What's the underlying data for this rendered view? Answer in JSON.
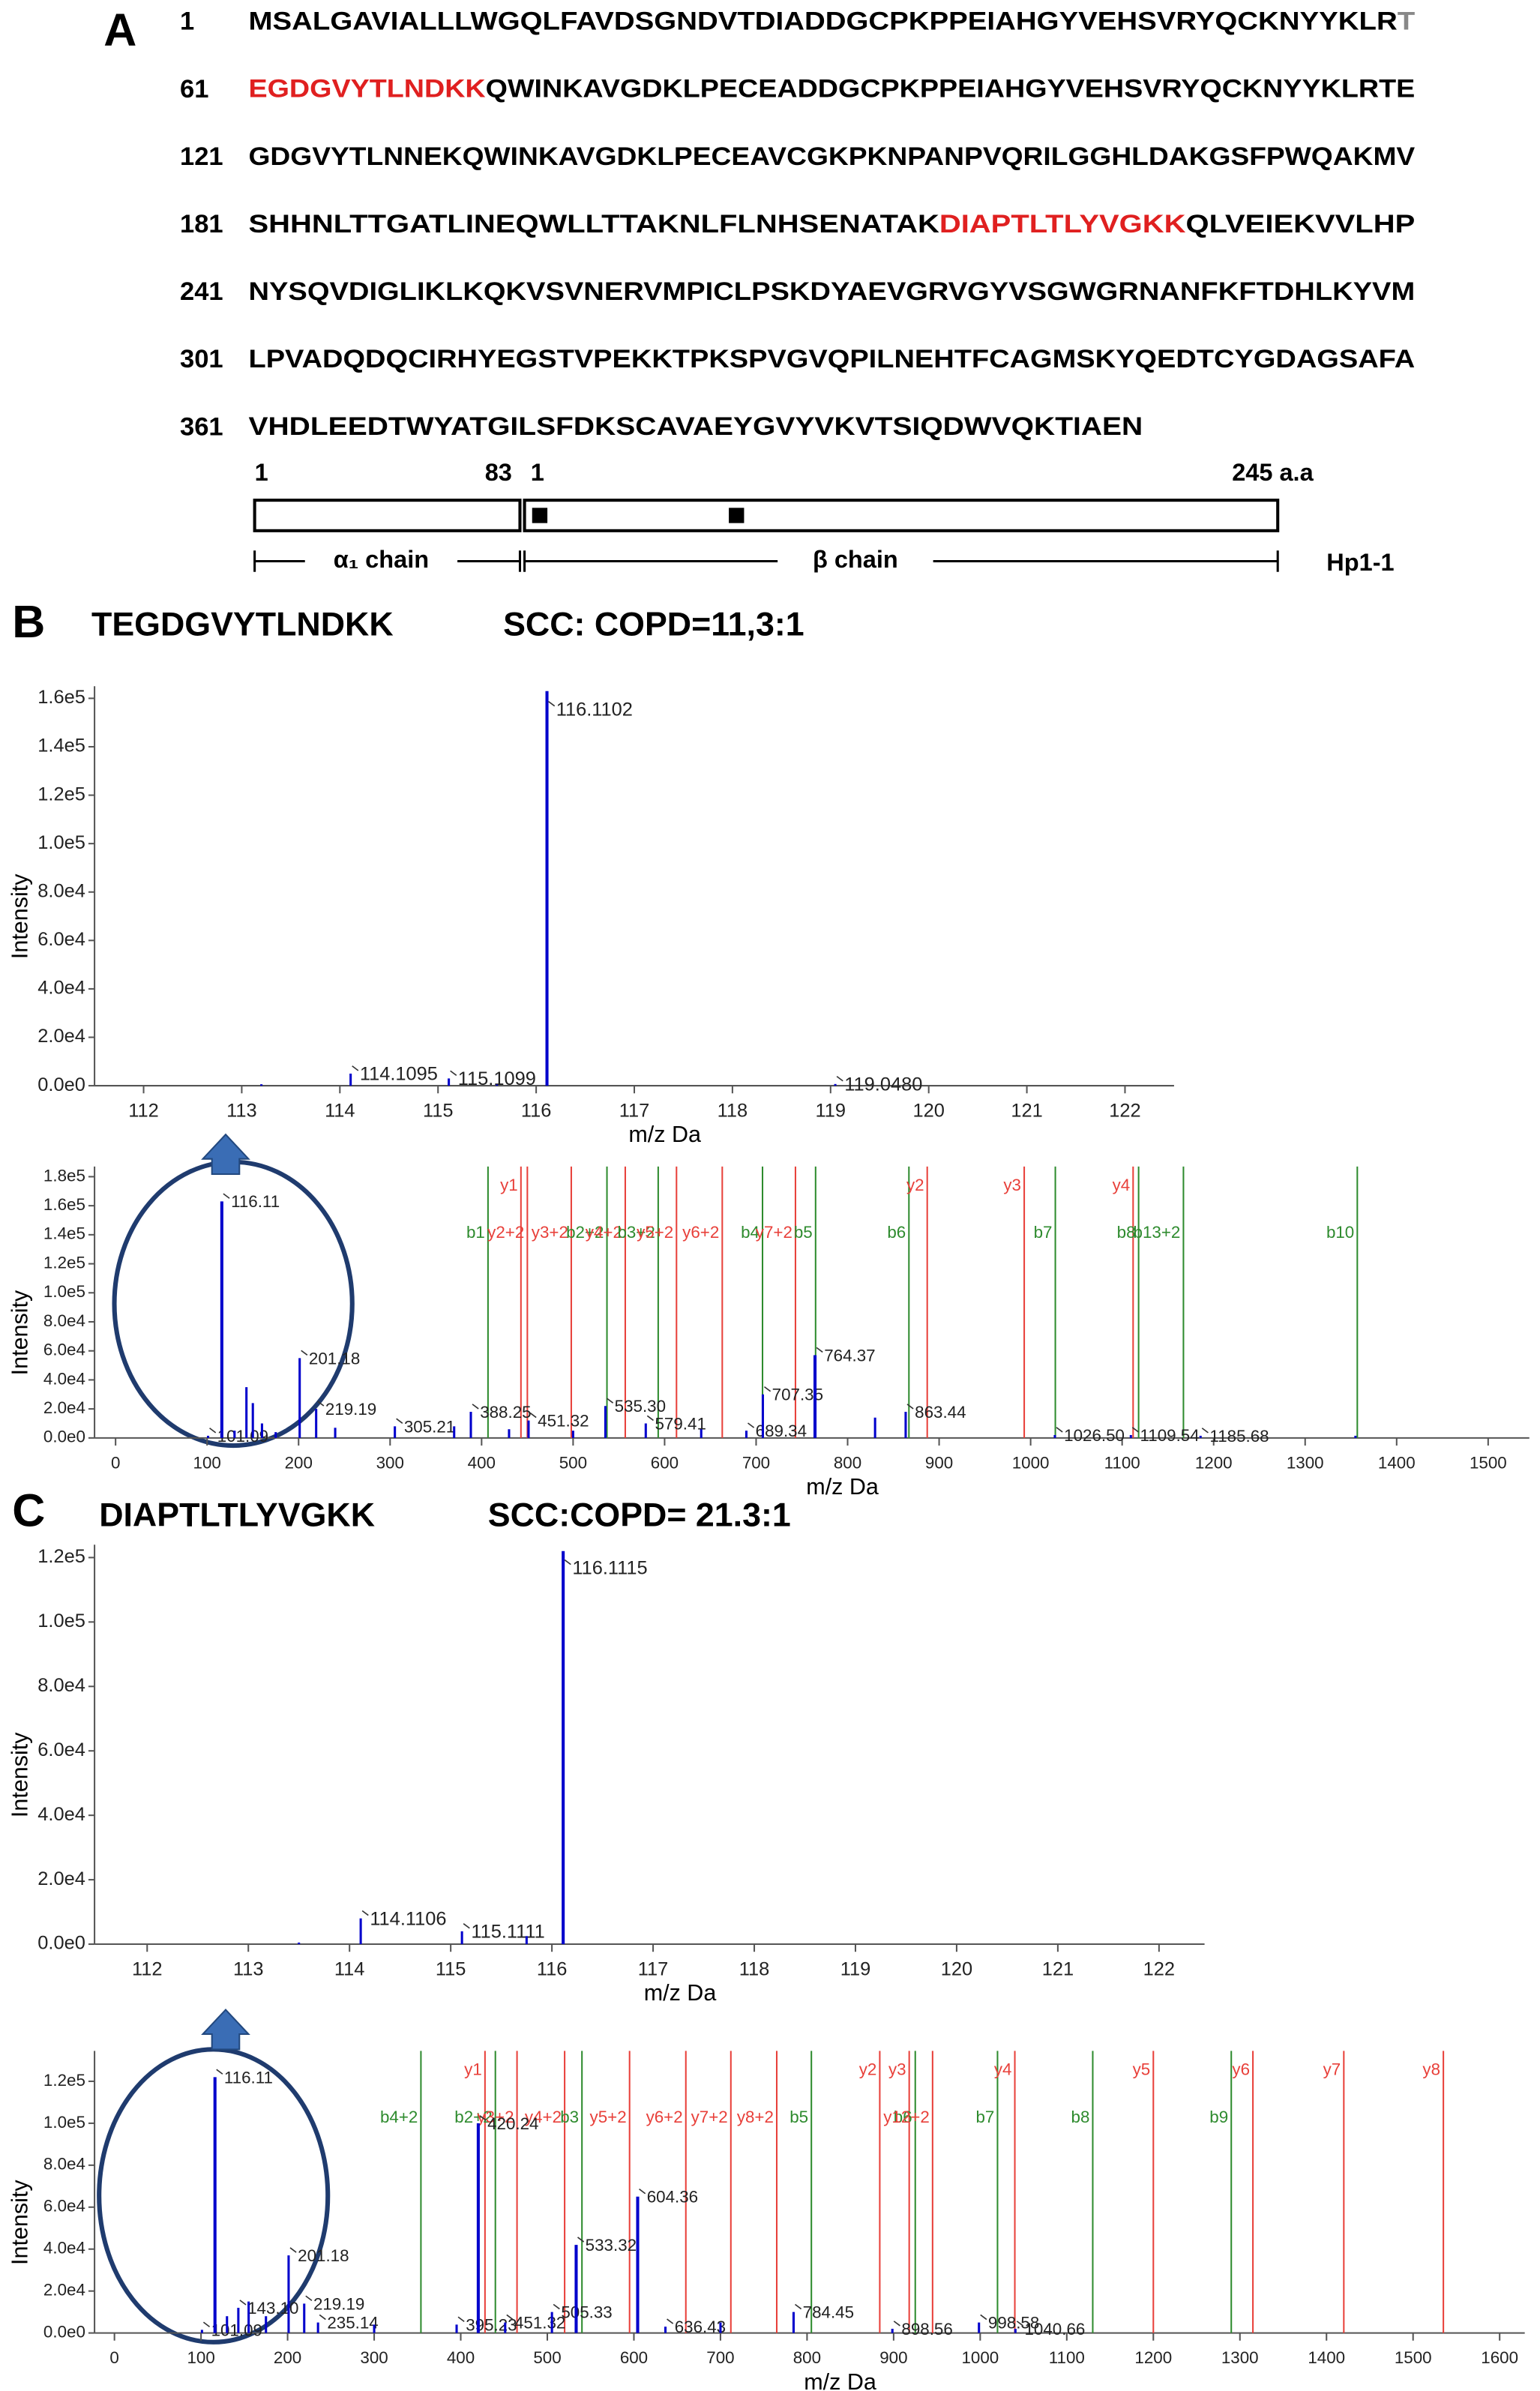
{
  "panel_a": {
    "label": "A",
    "rows": [
      {
        "number": "1",
        "segments": [
          {
            "text": "MSALGAVIALLLWGQLFAVDSGNDVTDIADDGCPKPPEIAHGYVEHSVRYQCKNYYKLR",
            "color": "#000000"
          },
          {
            "text": "T",
            "color": "#888888"
          }
        ]
      },
      {
        "number": "61",
        "segments": [
          {
            "text": "EGDGVYTLNDKK",
            "color": "#e02020"
          },
          {
            "text": "QWINKAVGDKLPECEADDGCPKPPEIAHGYVEHSVRYQCKNYYKLRTE",
            "color": "#000000"
          }
        ]
      },
      {
        "number": "121",
        "segments": [
          {
            "text": "GDGVYTLNNEKQWINKAVGDKLPECEAVCGKPKNPANPVQRILGGHLDAKGSFPWQAKMV",
            "color": "#000000"
          }
        ]
      },
      {
        "number": "181",
        "segments": [
          {
            "text": "SHHNLTTGATLINEQWLLTTAKNLFLNHSENATAK",
            "color": "#000000"
          },
          {
            "text": "DIAPTLTLYVGKK",
            "color": "#e02020"
          },
          {
            "text": "QLVEIEKVVLHP",
            "color": "#000000"
          }
        ]
      },
      {
        "number": "241",
        "segments": [
          {
            "text": "NYSQVDIGLIKLKQKVSVNERVMPICLPSKDYAEVGRVGYVSGWGRNANFKFTDHLKYVM",
            "color": "#000000"
          }
        ]
      },
      {
        "number": "301",
        "segments": [
          {
            "text": "LPVADQDQCIRHYEGSTVPEKKTPKSPVGVQPILNEHTFCAGMSKYQEDTCYGDAGSAFA",
            "color": "#000000"
          }
        ]
      },
      {
        "number": "361",
        "segments": [
          {
            "text": "VHDLEEDTWYATGILSFDKSCAVAEYGVYVKVTSIQDWVQKTIAEN",
            "color": "#000000"
          }
        ]
      }
    ],
    "domain": {
      "alpha_start": "1",
      "alpha_end": "83",
      "beta_start": "1",
      "beta_end": "245 a.a",
      "alpha_label": "α₁ chain",
      "beta_label": "β chain",
      "isoform": "Hp1-1"
    }
  },
  "panel_b": {
    "label": "B",
    "peptide": "TEGDGVYTLNDKK",
    "ratio": "SCC: COPD=11,3:1"
  },
  "panel_c": {
    "label": "C",
    "peptide": "DIAPTLTLYVGKK",
    "ratio": "SCC:COPD= 21.3:1"
  },
  "chart_data": [
    {
      "type": "spectrum",
      "xlabel": "m/z Da",
      "ylabel": "Intensity",
      "color": "#0000cc",
      "xlim": [
        111.5,
        122.5
      ],
      "xticks": [
        112,
        113,
        114,
        115,
        116,
        117,
        118,
        119,
        120,
        121,
        122
      ],
      "ylim": [
        0,
        165000
      ],
      "yticks": [
        {
          "value": 0,
          "label": "0.0e0"
        },
        {
          "value": 20000,
          "label": "2.0e4"
        },
        {
          "value": 40000,
          "label": "4.0e4"
        },
        {
          "value": 60000,
          "label": "6.0e4"
        },
        {
          "value": 80000,
          "label": "8.0e4"
        },
        {
          "value": 100000,
          "label": "1.0e5"
        },
        {
          "value": 120000,
          "label": "1.2e5"
        },
        {
          "value": 140000,
          "label": "1.4e5"
        },
        {
          "value": 160000,
          "label": "1.6e5"
        }
      ],
      "x": [
        113.2,
        114.1095,
        115.1099,
        115.6,
        116.1102,
        119.048
      ],
      "values": [
        600,
        5000,
        3000,
        500,
        163000,
        700
      ],
      "peak_labels": [
        null,
        "114.1095",
        "115.1099",
        null,
        "116.1102",
        "119.0480"
      ],
      "ion_lines": []
    },
    {
      "type": "spectrum",
      "xlabel": "m/z Da",
      "ylabel": "Intensity",
      "color": "#0000cc",
      "xlim": [
        -23,
        1545
      ],
      "xticks": [
        0,
        100,
        200,
        300,
        400,
        500,
        600,
        700,
        800,
        900,
        1000,
        1100,
        1200,
        1300,
        1400,
        1500
      ],
      "ylim": [
        0,
        187000
      ],
      "yticks": [
        {
          "value": 0,
          "label": "0.0e0"
        },
        {
          "value": 20000,
          "label": "2.0e4"
        },
        {
          "value": 40000,
          "label": "4.0e4"
        },
        {
          "value": 60000,
          "label": "6.0e4"
        },
        {
          "value": 80000,
          "label": "8.0e4"
        },
        {
          "value": 100000,
          "label": "1.0e5"
        },
        {
          "value": 120000,
          "label": "1.2e5"
        },
        {
          "value": 140000,
          "label": "1.4e5"
        },
        {
          "value": 160000,
          "label": "1.6e5"
        },
        {
          "value": 180000,
          "label": "1.8e5"
        }
      ],
      "x": [
        101.09,
        116.11,
        130,
        143,
        150,
        160,
        175,
        201.18,
        219.19,
        240,
        305.21,
        370,
        388.25,
        430,
        451.32,
        500,
        535.3,
        579.41,
        640,
        689.34,
        707.35,
        764.37,
        830,
        863.44,
        1026.5,
        1109.54,
        1185.68,
        1355
      ],
      "values": [
        1500,
        163000,
        5000,
        35000,
        24000,
        10000,
        4000,
        55000,
        20000,
        7000,
        8000,
        8000,
        18000,
        6000,
        12000,
        5000,
        22000,
        10000,
        6000,
        5000,
        30000,
        57000,
        14000,
        18000,
        2000,
        2000,
        1500,
        1500
      ],
      "peak_labels": [
        "101.09",
        "116.11",
        null,
        null,
        null,
        null,
        null,
        "201.18",
        "219.19",
        null,
        "305.21",
        null,
        "388.25",
        null,
        "451.32",
        null,
        "535.30",
        "579.41",
        null,
        "689.34",
        "707.35",
        "764.37",
        null,
        "863.44",
        "1026.50",
        "1109.54",
        "1185.68",
        null
      ],
      "ion_lines": [
        {
          "label": "b1",
          "x": 407,
          "color": "#2e8b2e"
        },
        {
          "label": "y1",
          "x": 443,
          "color": "#e8403a"
        },
        {
          "label": "y2+2",
          "x": 450,
          "color": "#e8403a"
        },
        {
          "label": "y3+2",
          "x": 498,
          "color": "#e8403a"
        },
        {
          "label": "b2+2",
          "x": 537,
          "color": "#2e8b2e"
        },
        {
          "label": "y4+2",
          "x": 557,
          "color": "#e8403a"
        },
        {
          "label": "b3+2",
          "x": 593,
          "color": "#2e8b2e"
        },
        {
          "label": "y5+2",
          "x": 613,
          "color": "#e8403a"
        },
        {
          "label": "y6+2",
          "x": 663,
          "color": "#e8403a"
        },
        {
          "label": "b4",
          "x": 707,
          "color": "#2e8b2e"
        },
        {
          "label": "y7+2",
          "x": 743,
          "color": "#e8403a"
        },
        {
          "label": "b5",
          "x": 765,
          "color": "#2e8b2e"
        },
        {
          "label": "b6",
          "x": 867,
          "color": "#2e8b2e"
        },
        {
          "label": "y2",
          "x": 887,
          "color": "#e8403a"
        },
        {
          "label": "y3",
          "x": 993,
          "color": "#e8403a"
        },
        {
          "label": "b7",
          "x": 1027,
          "color": "#2e8b2e"
        },
        {
          "label": "y4",
          "x": 1112,
          "color": "#e8403a"
        },
        {
          "label": "b8",
          "x": 1118,
          "color": "#2e8b2e"
        },
        {
          "label": "b13+2",
          "x": 1167,
          "color": "#2e8b2e"
        },
        {
          "label": "b10",
          "x": 1357,
          "color": "#2e8b2e"
        }
      ]
    },
    {
      "type": "spectrum",
      "xlabel": "m/z Da",
      "ylabel": "Intensity",
      "color": "#0000cc",
      "xlim": [
        111.48,
        122.45
      ],
      "xticks": [
        112,
        113,
        114,
        115,
        116,
        117,
        118,
        119,
        120,
        121,
        122
      ],
      "ylim": [
        0,
        124000
      ],
      "yticks": [
        {
          "value": 0,
          "label": "0.0e0"
        },
        {
          "value": 20000,
          "label": "2.0e4"
        },
        {
          "value": 40000,
          "label": "4.0e4"
        },
        {
          "value": 60000,
          "label": "6.0e4"
        },
        {
          "value": 80000,
          "label": "8.0e4"
        },
        {
          "value": 100000,
          "label": "1.0e5"
        },
        {
          "value": 120000,
          "label": "1.2e5"
        }
      ],
      "x": [
        113.5,
        114.1106,
        115.1111,
        115.75,
        116.1115
      ],
      "values": [
        500,
        8000,
        4000,
        2500,
        122000
      ],
      "peak_labels": [
        null,
        "114.1106",
        "115.1111",
        null,
        "116.1115"
      ],
      "ion_lines": []
    },
    {
      "type": "spectrum",
      "xlabel": "m/z Da",
      "ylabel": "Intensity",
      "color": "#0000cc",
      "xlim": [
        -23,
        1629
      ],
      "xticks": [
        0,
        100,
        200,
        300,
        400,
        500,
        600,
        700,
        800,
        900,
        1000,
        1100,
        1200,
        1300,
        1400,
        1500,
        1600
      ],
      "ylim": [
        0,
        134500
      ],
      "yticks": [
        {
          "value": 0,
          "label": "0.0e0"
        },
        {
          "value": 20000,
          "label": "2.0e4"
        },
        {
          "value": 40000,
          "label": "4.0e4"
        },
        {
          "value": 60000,
          "label": "6.0e4"
        },
        {
          "value": 80000,
          "label": "8.0e4"
        },
        {
          "value": 100000,
          "label": "1.0e5"
        },
        {
          "value": 120000,
          "label": "1.2e5"
        }
      ],
      "x": [
        101.09,
        116.11,
        130,
        143.1,
        155,
        175,
        201.18,
        219.19,
        235.14,
        300,
        395.23,
        420.24,
        451.32,
        505.33,
        533.32,
        604.36,
        636.43,
        700,
        784.45,
        898.56,
        998.58,
        1040.66
      ],
      "values": [
        1500,
        122000,
        8000,
        12000,
        15000,
        8000,
        37000,
        14000,
        5000,
        4000,
        4000,
        100000,
        5000,
        10000,
        42000,
        65000,
        3000,
        5000,
        10000,
        2000,
        5000,
        2000
      ],
      "peak_labels": [
        "101.09",
        "116.11",
        null,
        "143.10",
        null,
        null,
        "201.18",
        "219.19",
        "235.14",
        null,
        "395.23",
        "420.24",
        "451.32",
        "505.33",
        "533.32",
        "604.36",
        "636.43",
        null,
        "784.45",
        "898.56",
        "998.58",
        "1040.66"
      ],
      "ion_lines": [
        {
          "label": "b4+2",
          "x": 354,
          "color": "#2e8b2e"
        },
        {
          "label": "y1",
          "x": 428,
          "color": "#e8403a"
        },
        {
          "label": "b2+2",
          "x": 440,
          "color": "#2e8b2e"
        },
        {
          "label": "y3+2",
          "x": 465,
          "color": "#e8403a"
        },
        {
          "label": "y4+2",
          "x": 520,
          "color": "#e8403a"
        },
        {
          "label": "b3",
          "x": 540,
          "color": "#2e8b2e"
        },
        {
          "label": "y5+2",
          "x": 595,
          "color": "#e8403a"
        },
        {
          "label": "y6+2",
          "x": 660,
          "color": "#e8403a"
        },
        {
          "label": "y7+2",
          "x": 712,
          "color": "#e8403a"
        },
        {
          "label": "y8+2",
          "x": 765,
          "color": "#e8403a"
        },
        {
          "label": "b5",
          "x": 805,
          "color": "#2e8b2e"
        },
        {
          "label": "y2",
          "x": 884,
          "color": "#e8403a"
        },
        {
          "label": "y3",
          "x": 918,
          "color": "#e8403a"
        },
        {
          "label": "b6",
          "x": 925,
          "color": "#2e8b2e"
        },
        {
          "label": "y12+2",
          "x": 945,
          "color": "#e8403a"
        },
        {
          "label": "b7",
          "x": 1020,
          "color": "#2e8b2e"
        },
        {
          "label": "y4",
          "x": 1040,
          "color": "#e8403a"
        },
        {
          "label": "b8",
          "x": 1130,
          "color": "#2e8b2e"
        },
        {
          "label": "y5",
          "x": 1200,
          "color": "#e8403a"
        },
        {
          "label": "b9",
          "x": 1290,
          "color": "#2e8b2e"
        },
        {
          "label": "y6",
          "x": 1315,
          "color": "#e8403a"
        },
        {
          "label": "y7",
          "x": 1420,
          "color": "#e8403a"
        },
        {
          "label": "y8",
          "x": 1535,
          "color": "#e8403a"
        }
      ]
    }
  ]
}
